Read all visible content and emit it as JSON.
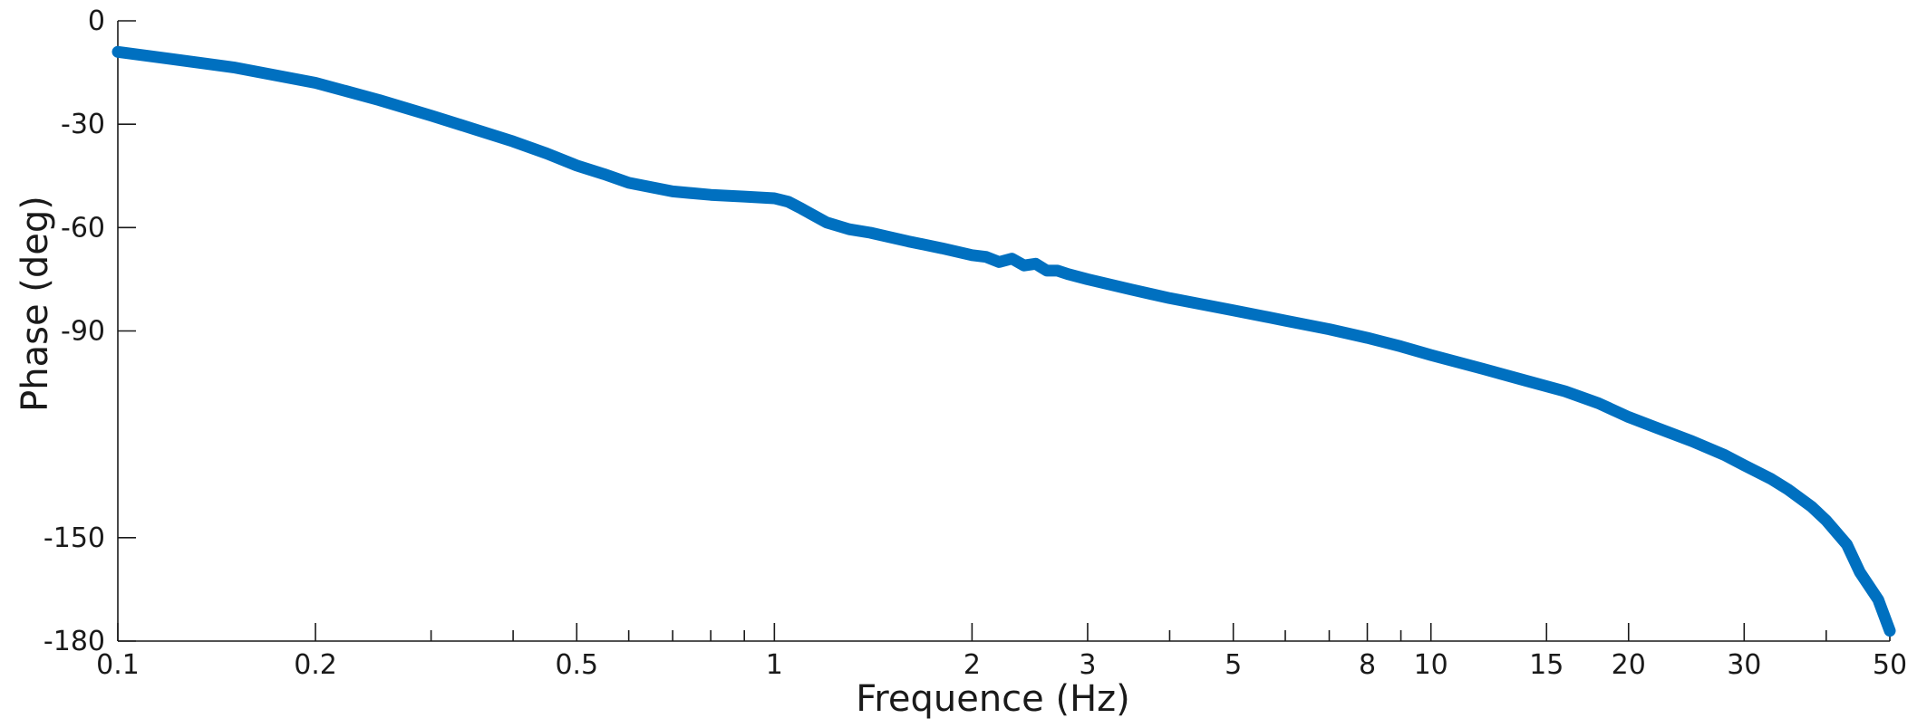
{
  "chart_data": {
    "type": "line",
    "title": "",
    "xlabel": "Frequence (Hz)",
    "ylabel": "Phase (deg)",
    "xscale": "log",
    "xlim": [
      0.1,
      50
    ],
    "ylim": [
      -180,
      0
    ],
    "x_ticks_labeled": [
      0.1,
      0.2,
      0.5,
      1,
      2,
      3,
      5,
      8,
      10,
      15,
      20,
      30,
      50
    ],
    "x_tick_labels": [
      "0.1",
      "0.2",
      "0.5",
      "1",
      "2",
      "3",
      "5",
      "8",
      "10",
      "15",
      "20",
      "30",
      "50"
    ],
    "x_ticks_minor": [
      0.3,
      0.4,
      0.6,
      0.7,
      0.8,
      0.9,
      4,
      6,
      7,
      9,
      40
    ],
    "y_ticks": [
      0,
      -30,
      -60,
      -90,
      -150,
      -180
    ],
    "y_tick_labels": [
      "0",
      "-30",
      "-60",
      "-90",
      "-150",
      "-180"
    ],
    "grid": false,
    "line_color": "#0070C0",
    "series": [
      {
        "x": [
          0.1,
          0.12,
          0.15,
          0.2,
          0.25,
          0.3,
          0.35,
          0.4,
          0.45,
          0.5,
          0.55,
          0.6,
          0.7,
          0.8,
          0.9,
          1.0,
          1.05,
          1.1,
          1.2,
          1.3,
          1.4,
          1.6,
          1.8,
          2.0,
          2.1,
          2.2,
          2.3,
          2.4,
          2.5,
          2.6,
          2.7,
          2.8,
          3.0,
          3.5,
          4.0,
          5.0,
          6.0,
          7.0,
          8.0,
          9.0,
          10.0,
          12.0,
          14.0,
          16.0,
          18.0,
          20.0,
          22.0,
          25.0,
          28.0,
          30.0,
          33.0,
          35.0,
          38.0,
          40.0,
          43.0,
          45.0,
          48.0,
          50.0
        ],
        "y": [
          -9,
          -11,
          -13.5,
          -18,
          -23,
          -27.5,
          -31.5,
          -35,
          -38.5,
          -42,
          -44.5,
          -47,
          -49.5,
          -50.5,
          -51,
          -51.5,
          -52.5,
          -54.5,
          -58.5,
          -60.5,
          -61.5,
          -64,
          -66,
          -68,
          -68.5,
          -70,
          -69,
          -71,
          -70.5,
          -72.5,
          -72.5,
          -73.5,
          -75,
          -78,
          -80.5,
          -84,
          -87,
          -89.5,
          -92,
          -94.5,
          -97,
          -101,
          -104.5,
          -107.5,
          -111,
          -115,
          -118,
          -122,
          -126,
          -129,
          -133,
          -136,
          -141,
          -145,
          -152,
          -160,
          -168,
          -177
        ]
      }
    ]
  }
}
